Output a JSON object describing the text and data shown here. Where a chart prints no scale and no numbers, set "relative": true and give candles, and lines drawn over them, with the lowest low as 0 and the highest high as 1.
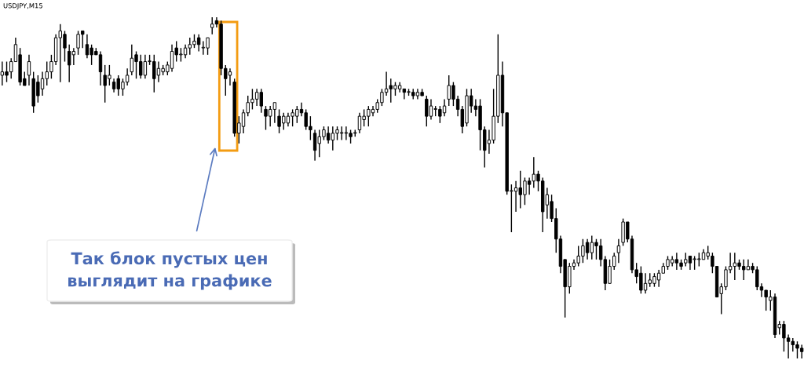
{
  "chart_data": {
    "type": "candlestick",
    "title": "USDJPY,M15",
    "relative": true,
    "annotations": [
      "Так блок пустых цен\nвыглядит на графике"
    ],
    "categories": [
      null,
      null,
      null,
      null,
      null,
      null,
      null,
      null,
      null,
      null,
      null,
      null,
      null,
      null,
      null,
      null,
      null,
      null,
      null,
      null,
      null,
      null,
      null,
      null,
      null,
      null,
      null,
      null,
      null,
      null,
      null,
      null,
      null,
      null,
      null,
      null,
      null,
      null,
      null,
      null,
      null,
      null,
      null,
      null,
      null,
      null,
      null,
      null,
      null,
      null,
      null,
      null,
      null,
      null,
      null,
      null,
      null,
      null,
      null,
      null,
      null,
      null,
      null,
      null,
      null,
      null,
      null,
      null,
      null,
      null,
      null,
      null,
      null,
      null,
      null,
      null,
      null,
      null,
      null,
      null,
      null,
      null,
      null,
      null,
      null,
      null,
      null,
      null,
      null,
      null,
      null,
      null,
      null,
      null,
      null,
      null,
      null,
      null,
      null,
      null,
      null,
      null,
      null,
      null,
      null,
      null,
      null,
      null,
      null,
      null,
      null,
      null,
      null,
      null,
      null,
      null,
      null,
      null,
      null,
      null,
      null,
      null,
      null,
      null,
      null,
      null,
      null,
      null,
      null,
      null,
      null,
      null,
      null,
      null,
      null,
      null,
      null,
      null,
      null,
      null,
      null,
      null,
      null,
      null,
      null,
      null,
      null,
      null,
      null,
      null,
      null,
      null,
      null,
      null,
      null,
      null,
      null,
      null,
      null,
      null,
      null,
      null,
      null,
      null,
      null,
      null,
      null,
      null,
      null,
      null,
      null,
      null,
      null,
      null,
      null,
      null,
      null,
      null,
      null,
      null
    ],
    "series": [
      {
        "color": "#000000",
        "ohlc": [
          [
            0.83,
            0.87,
            0.8,
            0.84
          ],
          [
            0.84,
            0.87,
            0.81,
            0.83
          ],
          [
            0.84,
            0.88,
            0.82,
            0.87
          ],
          [
            0.87,
            0.94,
            0.87,
            0.92
          ],
          [
            0.89,
            0.91,
            0.8,
            0.81
          ],
          [
            0.82,
            0.84,
            0.8,
            0.8
          ],
          [
            0.83,
            0.89,
            0.8,
            0.87
          ],
          [
            0.82,
            0.84,
            0.72,
            0.74
          ],
          [
            0.81,
            0.83,
            0.75,
            0.77
          ],
          [
            0.79,
            0.84,
            0.77,
            0.82
          ],
          [
            0.82,
            0.87,
            0.8,
            0.84
          ],
          [
            0.84,
            0.89,
            0.82,
            0.87
          ],
          [
            0.87,
            0.95,
            0.86,
            0.94
          ],
          [
            0.94,
            0.98,
            0.81,
            0.96
          ],
          [
            0.95,
            0.96,
            0.87,
            0.91
          ],
          [
            0.9,
            0.92,
            0.81,
            0.86
          ],
          [
            0.89,
            0.91,
            0.86,
            0.9
          ],
          [
            0.91,
            0.96,
            0.89,
            0.95
          ],
          [
            0.96,
            0.96,
            0.91,
            0.95
          ],
          [
            0.92,
            0.95,
            0.88,
            0.89
          ],
          [
            0.91,
            0.92,
            0.86,
            0.89
          ],
          [
            0.9,
            0.91,
            0.89,
            0.89
          ],
          [
            0.89,
            0.9,
            0.8,
            0.84
          ],
          [
            0.83,
            0.86,
            0.75,
            0.8
          ],
          [
            0.82,
            0.86,
            0.8,
            0.83
          ],
          [
            0.81,
            0.82,
            0.78,
            0.79
          ],
          [
            0.82,
            0.83,
            0.77,
            0.79
          ],
          [
            0.79,
            0.82,
            0.77,
            0.81
          ],
          [
            0.81,
            0.85,
            0.8,
            0.83
          ],
          [
            0.84,
            0.92,
            0.83,
            0.88
          ],
          [
            0.89,
            0.9,
            0.82,
            0.87
          ],
          [
            0.87,
            0.89,
            0.82,
            0.83
          ],
          [
            0.83,
            0.89,
            0.82,
            0.87
          ],
          [
            0.87,
            0.89,
            0.86,
            0.87
          ],
          [
            0.87,
            0.89,
            0.78,
            0.82
          ],
          [
            0.83,
            0.87,
            0.81,
            0.85
          ],
          [
            0.84,
            0.86,
            0.83,
            0.85
          ],
          [
            0.84,
            0.87,
            0.83,
            0.86
          ],
          [
            0.85,
            0.92,
            0.84,
            0.9
          ],
          [
            0.91,
            0.93,
            0.87,
            0.89
          ],
          [
            0.89,
            0.91,
            0.87,
            0.89
          ],
          [
            0.89,
            0.92,
            0.88,
            0.91
          ],
          [
            0.91,
            0.94,
            0.89,
            0.92
          ],
          [
            0.92,
            0.95,
            0.91,
            0.93
          ],
          [
            0.94,
            0.95,
            0.9,
            0.92
          ],
          [
            0.91,
            0.93,
            0.89,
            0.91
          ],
          [
            0.91,
            0.94,
            0.89,
            0.94
          ],
          [
            0.97,
            1.0,
            0.95,
            0.98
          ],
          [
            0.99,
            1.0,
            0.97,
            0.98
          ],
          [
            0.98,
            0.99,
            0.83,
            0.85
          ],
          [
            0.85,
            0.86,
            0.77,
            0.82
          ],
          [
            0.83,
            0.85,
            0.8,
            0.84
          ],
          [
            0.81,
            0.82,
            0.65,
            0.66
          ],
          [
            0.66,
            0.71,
            0.63,
            0.69
          ],
          [
            0.68,
            0.73,
            0.66,
            0.72
          ],
          [
            0.72,
            0.77,
            0.71,
            0.75
          ],
          [
            0.75,
            0.79,
            0.73,
            0.76
          ],
          [
            0.76,
            0.79,
            0.74,
            0.78
          ],
          [
            0.78,
            0.79,
            0.72,
            0.74
          ],
          [
            0.73,
            0.74,
            0.67,
            0.71
          ],
          [
            0.71,
            0.74,
            0.68,
            0.73
          ],
          [
            0.73,
            0.75,
            0.69,
            0.75
          ],
          [
            0.71,
            0.73,
            0.66,
            0.68
          ],
          [
            0.69,
            0.72,
            0.67,
            0.71
          ],
          [
            0.69,
            0.72,
            0.68,
            0.71
          ],
          [
            0.71,
            0.73,
            0.68,
            0.72
          ],
          [
            0.71,
            0.74,
            0.69,
            0.73
          ],
          [
            0.73,
            0.75,
            0.71,
            0.72
          ],
          [
            0.72,
            0.73,
            0.67,
            0.68
          ],
          [
            0.68,
            0.71,
            0.64,
            0.67
          ],
          [
            0.66,
            0.67,
            0.58,
            0.61
          ],
          [
            0.63,
            0.67,
            0.59,
            0.65
          ],
          [
            0.65,
            0.68,
            0.64,
            0.67
          ],
          [
            0.66,
            0.68,
            0.63,
            0.64
          ],
          [
            0.64,
            0.68,
            0.61,
            0.66
          ],
          [
            0.66,
            0.68,
            0.64,
            0.67
          ],
          [
            0.66,
            0.68,
            0.64,
            0.66
          ],
          [
            0.66,
            0.68,
            0.64,
            0.66
          ],
          [
            0.66,
            0.67,
            0.63,
            0.65
          ],
          [
            0.66,
            0.67,
            0.65,
            0.66
          ],
          [
            0.67,
            0.72,
            0.66,
            0.71
          ],
          [
            0.7,
            0.73,
            0.68,
            0.71
          ],
          [
            0.71,
            0.74,
            0.68,
            0.73
          ],
          [
            0.72,
            0.74,
            0.71,
            0.73
          ],
          [
            0.73,
            0.76,
            0.72,
            0.75
          ],
          [
            0.75,
            0.79,
            0.74,
            0.78
          ],
          [
            0.78,
            0.84,
            0.77,
            0.79
          ],
          [
            0.8,
            0.82,
            0.75,
            0.79
          ],
          [
            0.79,
            0.81,
            0.77,
            0.8
          ],
          [
            0.79,
            0.81,
            0.78,
            0.8
          ],
          [
            0.79,
            0.79,
            0.76,
            0.78
          ],
          [
            0.78,
            0.79,
            0.77,
            0.78
          ],
          [
            0.78,
            0.79,
            0.76,
            0.77
          ],
          [
            0.77,
            0.79,
            0.76,
            0.78
          ],
          [
            0.78,
            0.79,
            0.77,
            0.77
          ],
          [
            0.76,
            0.77,
            0.68,
            0.71
          ],
          [
            0.71,
            0.76,
            0.7,
            0.74
          ],
          [
            0.73,
            0.74,
            0.71,
            0.73
          ],
          [
            0.73,
            0.74,
            0.69,
            0.71
          ],
          [
            0.72,
            0.76,
            0.71,
            0.74
          ],
          [
            0.76,
            0.83,
            0.74,
            0.8
          ],
          [
            0.8,
            0.81,
            0.74,
            0.76
          ],
          [
            0.76,
            0.77,
            0.71,
            0.73
          ],
          [
            0.73,
            0.74,
            0.66,
            0.68
          ],
          [
            0.69,
            0.79,
            0.68,
            0.77
          ],
          [
            0.77,
            0.79,
            0.72,
            0.74
          ],
          [
            0.74,
            0.76,
            0.71,
            0.73
          ],
          [
            0.74,
            0.76,
            0.61,
            0.67
          ],
          [
            0.67,
            0.68,
            0.56,
            0.61
          ],
          [
            0.63,
            0.67,
            0.6,
            0.64
          ],
          [
            0.64,
            0.79,
            0.63,
            0.71
          ],
          [
            0.71,
            0.95,
            0.69,
            0.83
          ],
          [
            0.83,
            0.87,
            0.68,
            0.72
          ],
          [
            0.72,
            0.72,
            0.48,
            0.49
          ],
          [
            0.49,
            0.51,
            0.37,
            0.49
          ],
          [
            0.49,
            0.52,
            0.43,
            0.5
          ],
          [
            0.5,
            0.55,
            0.44,
            0.48
          ],
          [
            0.48,
            0.53,
            0.45,
            0.52
          ],
          [
            0.52,
            0.53,
            0.48,
            0.51
          ],
          [
            0.52,
            0.59,
            0.5,
            0.54
          ],
          [
            0.54,
            0.55,
            0.49,
            0.52
          ],
          [
            0.52,
            0.53,
            0.37,
            0.43
          ],
          [
            0.45,
            0.5,
            0.41,
            0.48
          ],
          [
            0.46,
            0.48,
            0.4,
            0.41
          ],
          [
            0.41,
            0.44,
            0.31,
            0.35
          ],
          [
            0.35,
            0.36,
            0.25,
            0.27
          ],
          [
            0.29,
            0.29,
            0.12,
            0.21
          ],
          [
            0.21,
            0.28,
            0.19,
            0.27
          ],
          [
            0.27,
            0.29,
            0.26,
            0.28
          ],
          [
            0.28,
            0.33,
            0.27,
            0.3
          ],
          [
            0.3,
            0.35,
            0.28,
            0.33
          ],
          [
            0.34,
            0.35,
            0.29,
            0.31
          ],
          [
            0.31,
            0.36,
            0.29,
            0.34
          ],
          [
            0.34,
            0.35,
            0.29,
            0.33
          ],
          [
            0.33,
            0.35,
            0.27,
            0.29
          ],
          [
            0.29,
            0.3,
            0.2,
            0.22
          ],
          [
            0.22,
            0.29,
            0.22,
            0.27
          ],
          [
            0.27,
            0.31,
            0.26,
            0.3
          ],
          [
            0.31,
            0.35,
            0.28,
            0.33
          ],
          [
            0.34,
            0.41,
            0.33,
            0.4
          ],
          [
            0.4,
            0.4,
            0.34,
            0.35
          ],
          [
            0.35,
            0.36,
            0.25,
            0.26
          ],
          [
            0.26,
            0.28,
            0.22,
            0.24
          ],
          [
            0.25,
            0.27,
            0.19,
            0.2
          ],
          [
            0.2,
            0.25,
            0.19,
            0.22
          ],
          [
            0.22,
            0.25,
            0.21,
            0.23
          ],
          [
            0.22,
            0.25,
            0.21,
            0.24
          ],
          [
            0.23,
            0.26,
            0.21,
            0.25
          ],
          [
            0.25,
            0.28,
            0.25,
            0.27
          ],
          [
            0.27,
            0.3,
            0.26,
            0.29
          ],
          [
            0.28,
            0.3,
            0.27,
            0.29
          ],
          [
            0.29,
            0.31,
            0.26,
            0.28
          ],
          [
            0.28,
            0.29,
            0.26,
            0.27
          ],
          [
            0.28,
            0.31,
            0.27,
            0.29
          ],
          [
            0.3,
            0.3,
            0.26,
            0.28
          ],
          [
            0.29,
            0.3,
            0.26,
            0.29
          ],
          [
            0.29,
            0.31,
            0.27,
            0.29
          ],
          [
            0.29,
            0.32,
            0.29,
            0.31
          ],
          [
            0.3,
            0.33,
            0.29,
            0.31
          ],
          [
            0.3,
            0.31,
            0.25,
            0.27
          ],
          [
            0.27,
            0.27,
            0.18,
            0.18
          ],
          [
            0.19,
            0.22,
            0.13,
            0.21
          ],
          [
            0.21,
            0.27,
            0.2,
            0.26
          ],
          [
            0.26,
            0.31,
            0.25,
            0.27
          ],
          [
            0.27,
            0.31,
            0.23,
            0.28
          ],
          [
            0.28,
            0.29,
            0.26,
            0.27
          ],
          [
            0.27,
            0.29,
            0.23,
            0.26
          ],
          [
            0.26,
            0.29,
            0.26,
            0.27
          ],
          [
            0.27,
            0.28,
            0.25,
            0.26
          ],
          [
            0.26,
            0.27,
            0.2,
            0.21
          ],
          [
            0.21,
            0.22,
            0.18,
            0.2
          ],
          [
            0.2,
            0.2,
            0.14,
            0.18
          ],
          [
            0.17,
            0.2,
            0.14,
            0.18
          ],
          [
            0.18,
            0.19,
            0.06,
            0.07
          ],
          [
            0.09,
            0.11,
            0.07,
            0.1
          ],
          [
            0.1,
            0.11,
            0.02,
            0.06
          ],
          [
            0.06,
            0.07,
            0.0,
            0.05
          ],
          [
            0.05,
            0.06,
            0.02,
            0.04
          ],
          [
            0.04,
            0.05,
            0.0,
            0.03
          ],
          [
            0.03,
            0.04,
            0.0,
            0.02
          ]
        ]
      }
    ]
  }
}
